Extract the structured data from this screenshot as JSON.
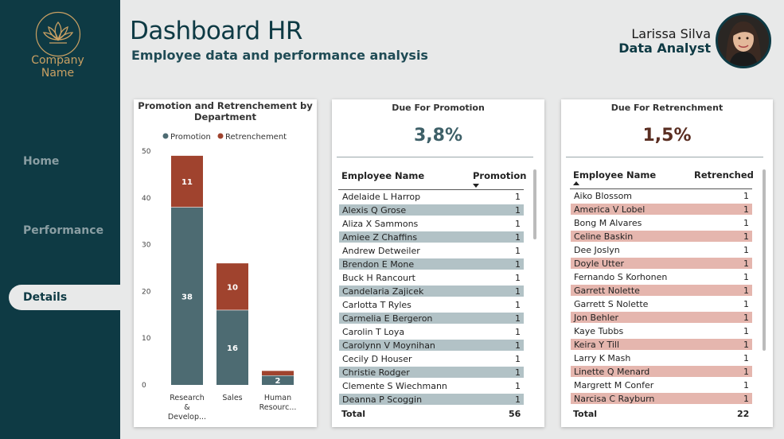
{
  "sidebar": {
    "company_line1": "Company",
    "company_line2": "Name",
    "nav": [
      {
        "label": "Home"
      },
      {
        "label": "Performance"
      },
      {
        "label": "Details"
      }
    ],
    "active": "Details"
  },
  "header": {
    "title": "Dashboard HR",
    "subtitle": "Employee data and performance analysis",
    "user_name": "Larissa Silva",
    "user_role": "Data Analyst"
  },
  "colors": {
    "sidebar": "#0e3a44",
    "promotion": "#4d6b72",
    "retrenchment": "#a0432e",
    "promotion_row": "#b2c2c6",
    "retrenchment_row": "#e5b6ae",
    "gold": "#c9a063"
  },
  "chart_data": {
    "type": "bar",
    "stacked": true,
    "title": "Promotion and Retrenchement by Department",
    "categories": [
      "Research & Develop...",
      "Sales",
      "Human Resourc..."
    ],
    "category_lines": [
      [
        "Research",
        "&",
        "Develop..."
      ],
      [
        "Sales"
      ],
      [
        "Human",
        "Resourc..."
      ]
    ],
    "series": [
      {
        "name": "Promotion",
        "values": [
          38,
          16,
          2
        ],
        "color": "#4d6b72"
      },
      {
        "name": "Retrenchement",
        "values": [
          11,
          10,
          1
        ],
        "color": "#a0432e"
      }
    ],
    "data_labels": [
      [
        "38",
        "16",
        "2"
      ],
      [
        "11",
        "10",
        ""
      ]
    ],
    "ylim": [
      0,
      50
    ],
    "yticks": [
      "0",
      "10",
      "20",
      "30",
      "40",
      "50"
    ],
    "legend": "top",
    "grid": false
  },
  "promotion": {
    "title": "Due For Promotion",
    "kpi": "3,8%",
    "col_name": "Employee Name",
    "col_value": "Promotion",
    "rows": [
      {
        "name": "Adelaide L Harrop",
        "value": "1"
      },
      {
        "name": "Alexis Q Grose",
        "value": "1"
      },
      {
        "name": "Aliza X Sammons",
        "value": "1"
      },
      {
        "name": "Amiee Z Chaffins",
        "value": "1"
      },
      {
        "name": "Andrew Detweiler",
        "value": "1"
      },
      {
        "name": "Brendon E Mone",
        "value": "1"
      },
      {
        "name": "Buck H Rancourt",
        "value": "1"
      },
      {
        "name": "Candelaria Zajicek",
        "value": "1"
      },
      {
        "name": "Carlotta T Ryles",
        "value": "1"
      },
      {
        "name": "Carmelia E Bergeron",
        "value": "1"
      },
      {
        "name": "Carolin T Loya",
        "value": "1"
      },
      {
        "name": "Carolynn V Moynihan",
        "value": "1"
      },
      {
        "name": "Cecily D Houser",
        "value": "1"
      },
      {
        "name": "Christie Rodger",
        "value": "1"
      },
      {
        "name": "Clemente S Wiechmann",
        "value": "1"
      },
      {
        "name": "Deanna P Scoggin",
        "value": "1"
      }
    ],
    "total_label": "Total",
    "total_value": "56"
  },
  "retrenchment": {
    "title": "Due For Retrenchment",
    "kpi": "1,5%",
    "col_name": "Employee Name",
    "col_value": "Retrenched",
    "rows": [
      {
        "name": "Aiko Blossom",
        "value": "1"
      },
      {
        "name": "America V Lobel",
        "value": "1"
      },
      {
        "name": "Bong M Alvares",
        "value": "1"
      },
      {
        "name": "Celine Baskin",
        "value": "1"
      },
      {
        "name": "Dee Joslyn",
        "value": "1"
      },
      {
        "name": "Doyle Utter",
        "value": "1"
      },
      {
        "name": "Fernando S Korhonen",
        "value": "1"
      },
      {
        "name": "Garrett Nolette",
        "value": "1"
      },
      {
        "name": "Garrett S Nolette",
        "value": "1"
      },
      {
        "name": "Jon Behler",
        "value": "1"
      },
      {
        "name": "Kaye Tubbs",
        "value": "1"
      },
      {
        "name": "Keira Y Till",
        "value": "1"
      },
      {
        "name": "Larry K Mash",
        "value": "1"
      },
      {
        "name": "Linette Q Menard",
        "value": "1"
      },
      {
        "name": "Margrett M Confer",
        "value": "1"
      },
      {
        "name": "Narcisa C Rayburn",
        "value": "1"
      }
    ],
    "total_label": "Total",
    "total_value": "22"
  }
}
